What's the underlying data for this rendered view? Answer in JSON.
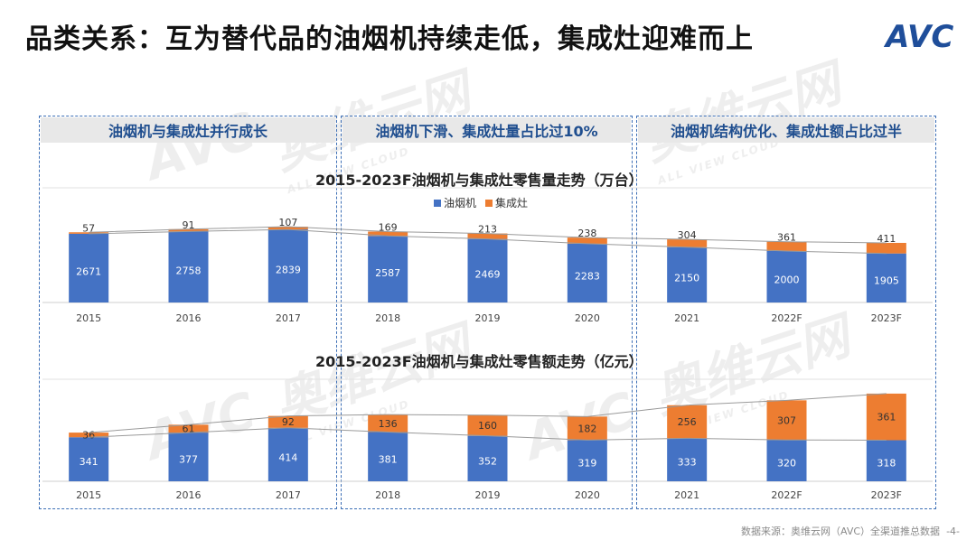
{
  "page_title": "品类关系：互为替代品的油烟机持续走低，集成灶迎难而上",
  "logo_text": "AVC",
  "watermark": {
    "main": "奥维云网",
    "sub": "ALL VIEW CLOUD"
  },
  "panels": [
    {
      "label": "油烟机与集成灶并行成长"
    },
    {
      "label": "油烟机下滑、集成灶量占比过10%"
    },
    {
      "label": "油烟机结构优化、集成灶额占比过半"
    }
  ],
  "colors": {
    "hood": "#4472c4",
    "stove": "#ed7d31",
    "panel_border": "#3d6fb6",
    "header_text": "#1f4e8f"
  },
  "footer": "数据来源：奥维云网（AVC）全渠道推总数据",
  "page_number": "-4-",
  "chart_data": [
    {
      "type": "bar",
      "stacked": true,
      "title": "2015-2023F油烟机与集成灶零售量走势（万台）",
      "categories": [
        "2015",
        "2016",
        "2017",
        "2018",
        "2019",
        "2020",
        "2021",
        "2022F",
        "2023F"
      ],
      "series": [
        {
          "name": "油烟机",
          "values": [
            2671,
            2758,
            2839,
            2587,
            2469,
            2283,
            2150,
            2000,
            1905
          ]
        },
        {
          "name": "集成灶",
          "values": [
            57,
            91,
            107,
            169,
            213,
            238,
            304,
            361,
            411
          ]
        }
      ],
      "legend_position": "top-center",
      "grid": true,
      "trend_lines": true
    },
    {
      "type": "bar",
      "stacked": true,
      "title": "2015-2023F油烟机与集成灶零售额走势（亿元）",
      "categories": [
        "2015",
        "2016",
        "2017",
        "2018",
        "2019",
        "2020",
        "2021",
        "2022F",
        "2023F"
      ],
      "series": [
        {
          "name": "油烟机",
          "values": [
            341,
            377,
            414,
            381,
            352,
            319,
            333,
            320,
            318
          ]
        },
        {
          "name": "集成灶",
          "values": [
            36,
            61,
            92,
            136,
            160,
            182,
            256,
            307,
            361
          ]
        }
      ],
      "grid": true,
      "trend_lines": true
    }
  ]
}
